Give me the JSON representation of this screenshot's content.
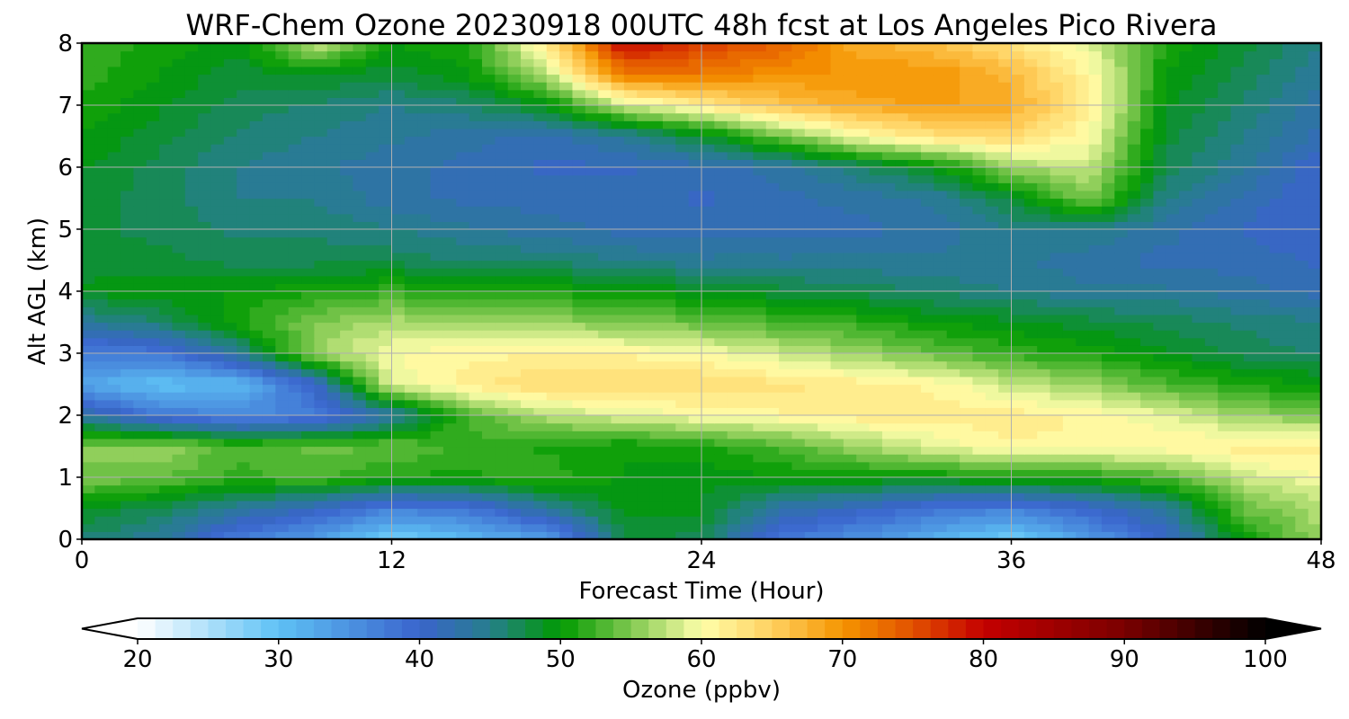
{
  "chart_data": {
    "type": "heatmap",
    "title": "WRF-Chem Ozone  20230918 00UTC 48h fcst at Los Angeles Pico Rivera",
    "xlabel": "Forecast Time (Hour)",
    "ylabel": "Alt AGL (km)",
    "xlim": [
      0,
      48
    ],
    "ylim": [
      0,
      8
    ],
    "xticks": [
      0,
      12,
      24,
      36,
      48
    ],
    "yticks": [
      0,
      1,
      2,
      3,
      4,
      5,
      6,
      7,
      8
    ],
    "grid": true,
    "x": [
      0,
      3,
      6,
      9,
      12,
      15,
      18,
      21,
      24,
      27,
      30,
      33,
      36,
      39,
      42,
      45,
      48
    ],
    "y": [
      0,
      0.5,
      1,
      1.5,
      2,
      2.5,
      3,
      3.5,
      4,
      4.5,
      5,
      5.5,
      6,
      6.5,
      7,
      7.5,
      8
    ],
    "z": [
      [
        46,
        44,
        37,
        34,
        28,
        31,
        33,
        48,
        47,
        38,
        35,
        32,
        28,
        34,
        40,
        50,
        56
      ],
      [
        49,
        47,
        44,
        41,
        37,
        38,
        44,
        49,
        49,
        43,
        41,
        38,
        37,
        40,
        44,
        54,
        57
      ],
      [
        55,
        54,
        52,
        53,
        51,
        51,
        52,
        50,
        49,
        50,
        50,
        50,
        51,
        51,
        53,
        58,
        60
      ],
      [
        55,
        56,
        53,
        54,
        54,
        52,
        51,
        50,
        51,
        53,
        56,
        59,
        61,
        61,
        61,
        62,
        62
      ],
      [
        44,
        38,
        36,
        37,
        43,
        53,
        57,
        59,
        60,
        61,
        62,
        62,
        62,
        61,
        59,
        56,
        55
      ],
      [
        33,
        30,
        31,
        40,
        59,
        62,
        64,
        64,
        64,
        63,
        62,
        61,
        58,
        56,
        53,
        51,
        50
      ],
      [
        37,
        38,
        44,
        56,
        60,
        61,
        61,
        61,
        60,
        58,
        56,
        54,
        52,
        51,
        49,
        47,
        46
      ],
      [
        44,
        46,
        51,
        55,
        57,
        56,
        56,
        55,
        54,
        53,
        52,
        50,
        49,
        48,
        47,
        46,
        45
      ],
      [
        49,
        50,
        50,
        51,
        52,
        51,
        51,
        50,
        49,
        48,
        47,
        46,
        45,
        44,
        44,
        43,
        42
      ],
      [
        48,
        48,
        47,
        47,
        47,
        46,
        46,
        45,
        44,
        44,
        44,
        44,
        44,
        43,
        42,
        42,
        41
      ],
      [
        48,
        47,
        46,
        46,
        45,
        44,
        43,
        42,
        42,
        42,
        42,
        43,
        45,
        45,
        43,
        41,
        40
      ],
      [
        48,
        47,
        45,
        45,
        43,
        42,
        42,
        42,
        41,
        42,
        43,
        44,
        48,
        55,
        45,
        42,
        40
      ],
      [
        49,
        47,
        45,
        44,
        43,
        42,
        41,
        41,
        42,
        43,
        46,
        49,
        56,
        58,
        47,
        44,
        40
      ],
      [
        50,
        48,
        46,
        45,
        44,
        43,
        42,
        44,
        48,
        54,
        60,
        63,
        64,
        60,
        48,
        45,
        42
      ],
      [
        51,
        49,
        47,
        46,
        45,
        46,
        49,
        58,
        62,
        66,
        68,
        69,
        68,
        62,
        49,
        46,
        43
      ],
      [
        52,
        50,
        48,
        49,
        48,
        50,
        57,
        72,
        72,
        70,
        70,
        70,
        67,
        61,
        50,
        47,
        44
      ],
      [
        52,
        51,
        49,
        58,
        50,
        51,
        62,
        80,
        76,
        74,
        68,
        66,
        63,
        59,
        51,
        48,
        45
      ]
    ],
    "colorbar": {
      "label": "Ozone  (ppbv)",
      "min": 20,
      "max": 100,
      "ticks": [
        20,
        30,
        40,
        50,
        60,
        70,
        80,
        90,
        100
      ],
      "extend": "both",
      "stops": [
        {
          "v": 20,
          "c": "#ffffff"
        },
        {
          "v": 30,
          "c": "#5ec1f5"
        },
        {
          "v": 40,
          "c": "#3a64cc"
        },
        {
          "v": 45,
          "c": "#267e8c"
        },
        {
          "v": 50,
          "c": "#009a00"
        },
        {
          "v": 55,
          "c": "#80c850"
        },
        {
          "v": 60,
          "c": "#ffffaa"
        },
        {
          "v": 65,
          "c": "#ffd060"
        },
        {
          "v": 70,
          "c": "#f59500"
        },
        {
          "v": 75,
          "c": "#e25000"
        },
        {
          "v": 80,
          "c": "#c40000"
        },
        {
          "v": 90,
          "c": "#7a0000"
        },
        {
          "v": 100,
          "c": "#000000"
        }
      ]
    }
  }
}
